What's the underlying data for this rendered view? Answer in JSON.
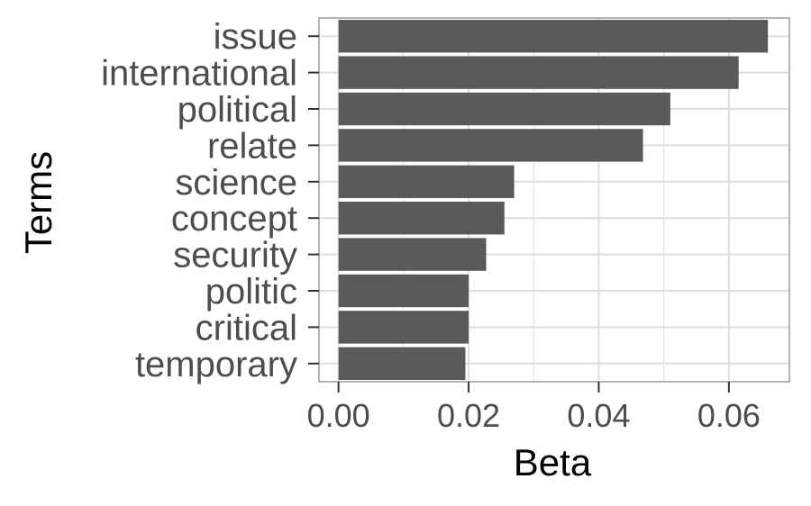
{
  "chart_data": {
    "type": "bar",
    "orientation": "horizontal",
    "categories": [
      "issue",
      "international",
      "political",
      "relate",
      "science",
      "concept",
      "security",
      "politic",
      "critical",
      "temporary"
    ],
    "values": [
      0.066,
      0.0615,
      0.051,
      0.0468,
      0.027,
      0.0255,
      0.0227,
      0.02,
      0.02,
      0.0195
    ],
    "xlabel": "Beta",
    "ylabel": "Terms",
    "xlim": [
      -0.003,
      0.0693
    ],
    "xticks": [
      0.0,
      0.02,
      0.04,
      0.06
    ],
    "xtick_labels": [
      "0.00",
      "0.02",
      "0.04",
      "0.06"
    ],
    "grid": true,
    "bar_color": "#595959",
    "grid_color": "#dedede",
    "panel_border_color": "#b3b3b3"
  }
}
